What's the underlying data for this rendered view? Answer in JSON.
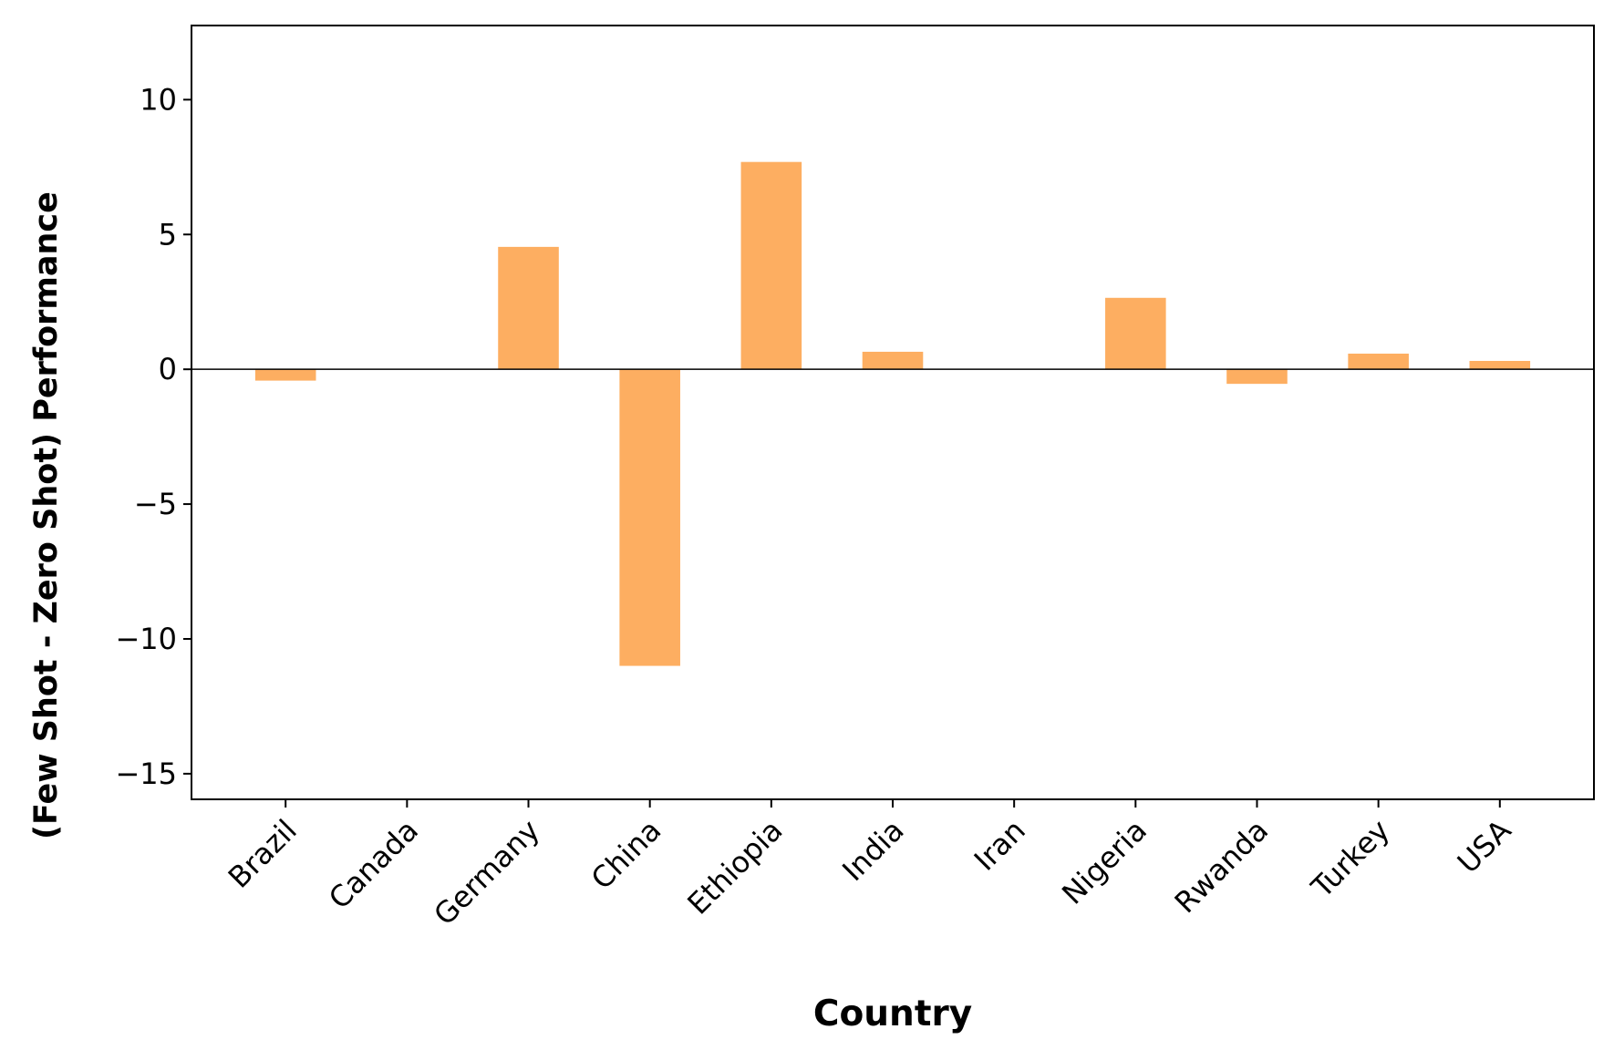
{
  "chart_data": {
    "type": "bar",
    "xlabel": "Country",
    "ylabel": "(Few Shot - Zero Shot) Performance",
    "categories": [
      "Brazil",
      "Canada",
      "Germany",
      "China",
      "Ethiopia",
      "India",
      "Iran",
      "Nigeria",
      "Rwanda",
      "Turkey",
      "USA"
    ],
    "values": [
      -0.42,
      0,
      4.54,
      -11.0,
      7.69,
      0.65,
      0,
      2.65,
      -0.54,
      0.58,
      0.31
    ],
    "color": "#fdae61",
    "ylim": [
      -15.95,
      12.75
    ],
    "yticks": [
      {
        "value": -15,
        "label": "−15"
      },
      {
        "value": -10,
        "label": "−10"
      },
      {
        "value": -5,
        "label": "−5"
      },
      0,
      5,
      10
    ],
    "grid": false
  }
}
